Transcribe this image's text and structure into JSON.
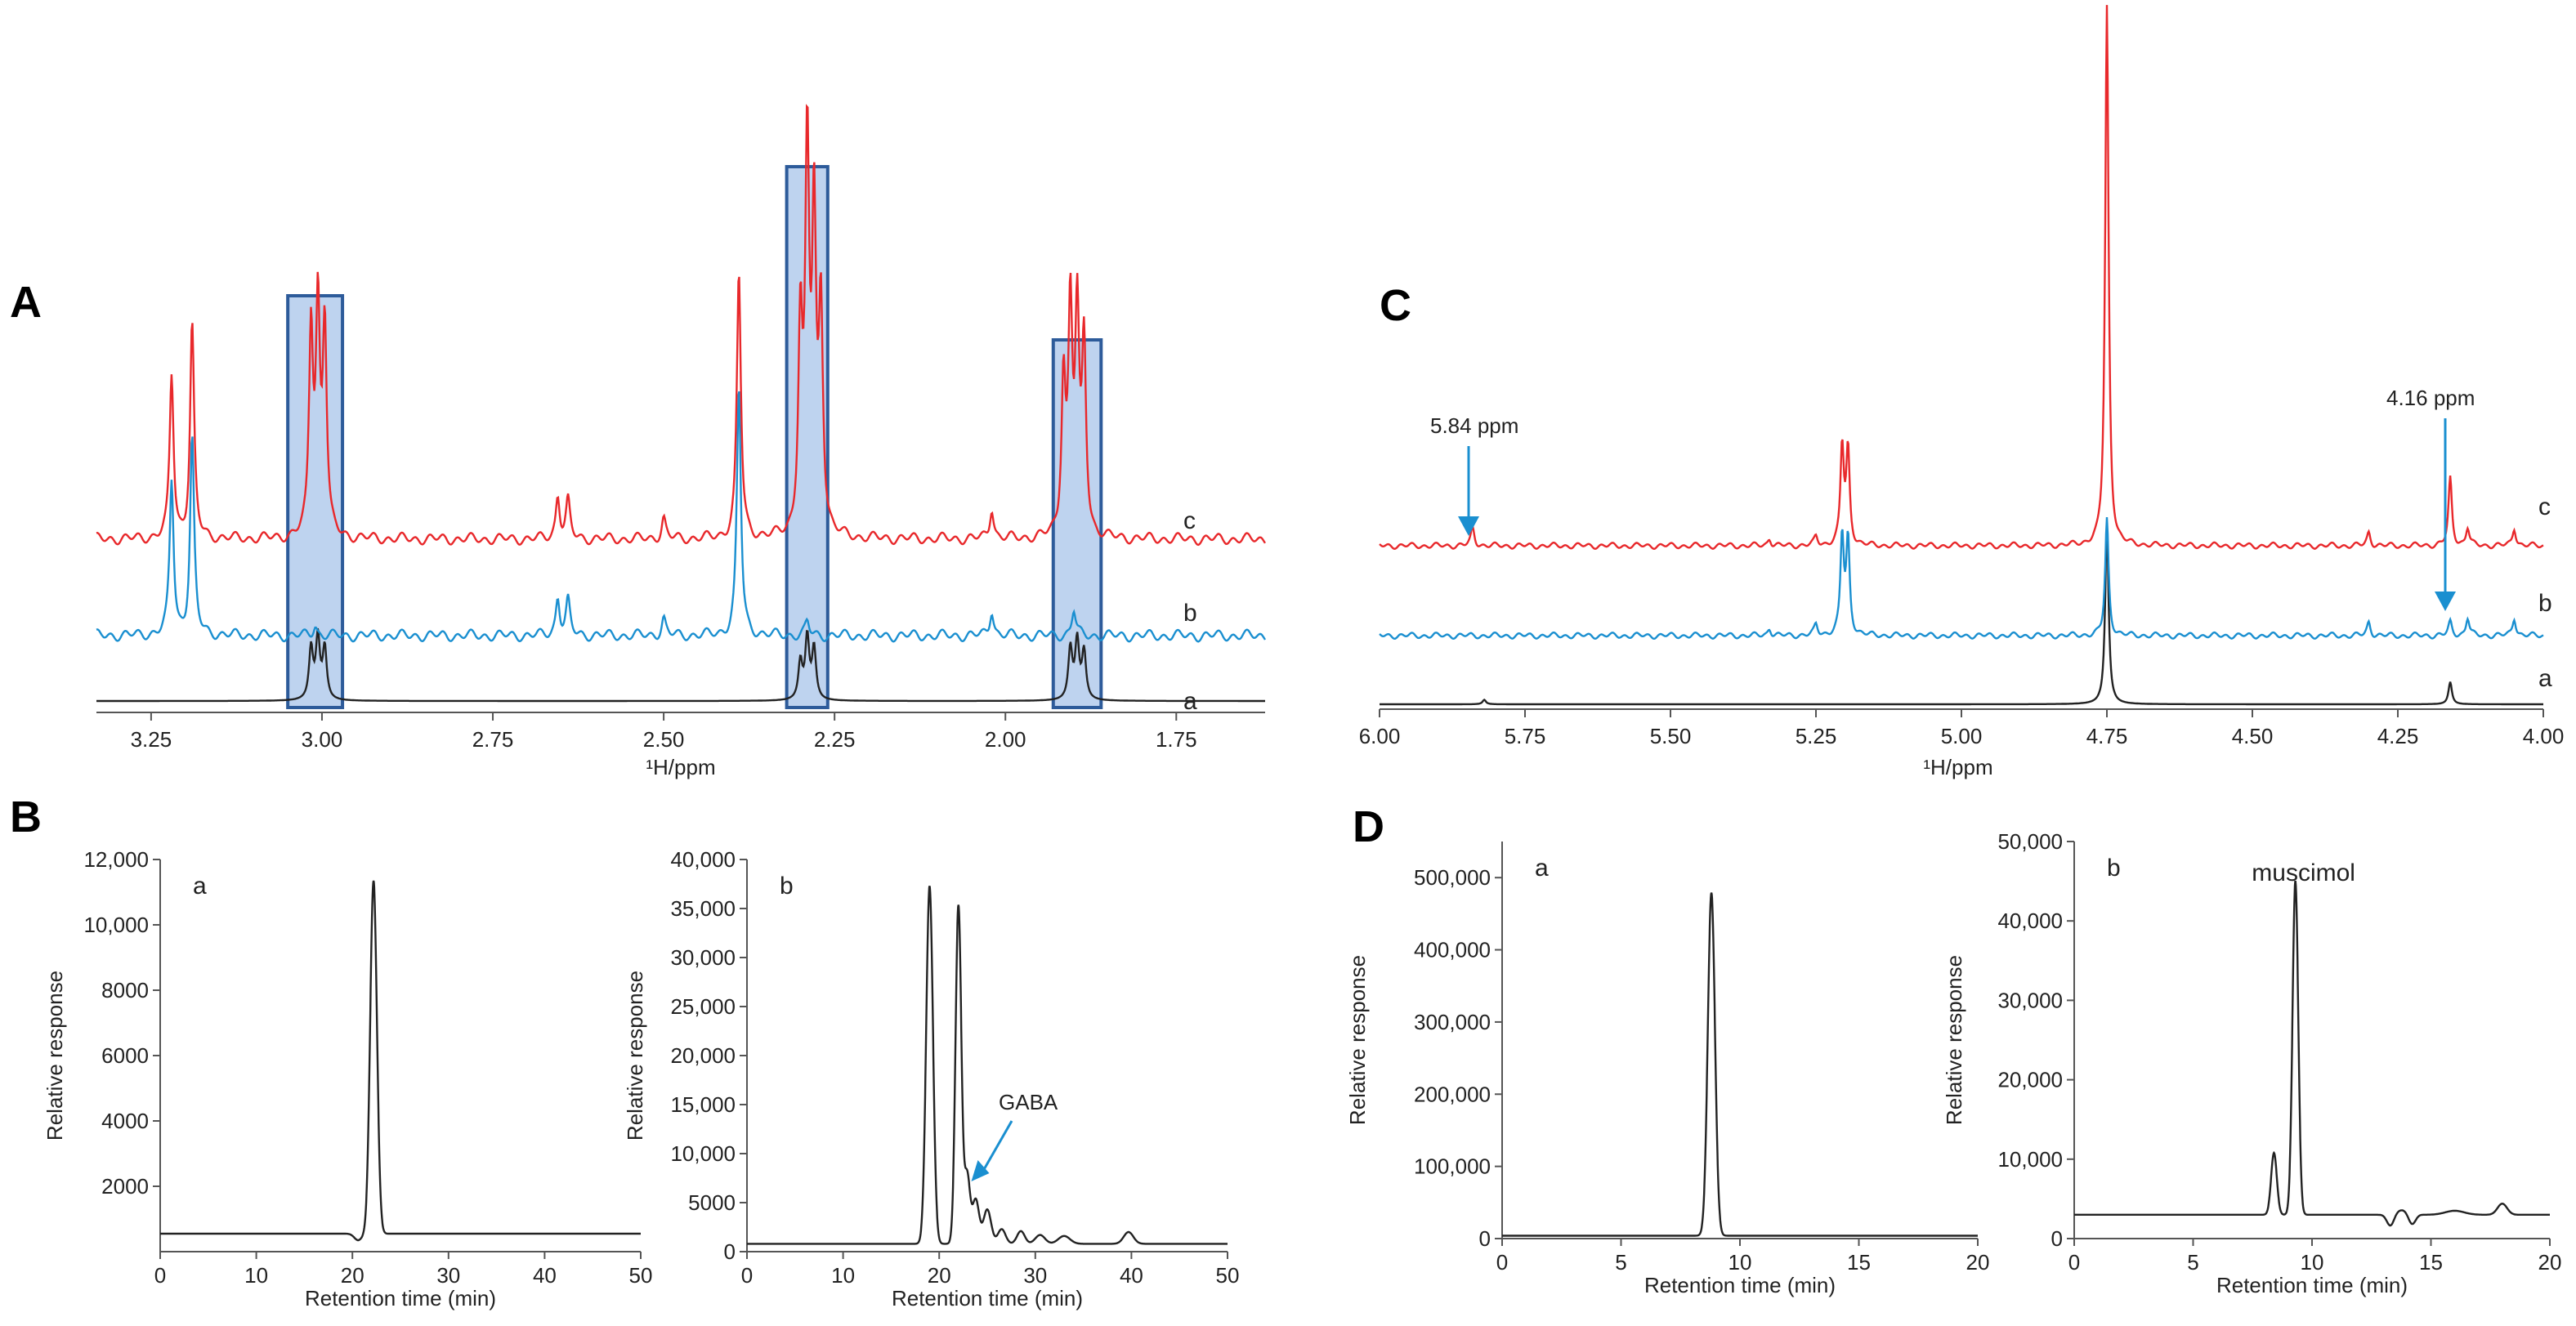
{
  "chart_data": [
    {
      "id": "A",
      "type": "line",
      "panel_label": "A",
      "xlabel": "¹H/ppm",
      "x_range": [
        3.33,
        1.62
      ],
      "x_reversed": true,
      "x_ticks": [
        3.25,
        3.0,
        2.75,
        2.5,
        2.25,
        2.0,
        1.75
      ],
      "x_tick_labels": [
        "3.25",
        "3.00",
        "2.75",
        "2.50",
        "2.25",
        "2.00",
        "1.75"
      ],
      "traces": [
        {
          "name": "c",
          "color": "#e8282b",
          "baseline_offset": 2,
          "peaks": [
            [
              3.22,
              0.95
            ],
            [
              3.19,
              1.25
            ],
            [
              3.016,
              1.2
            ],
            [
              3.006,
              1.3
            ],
            [
              2.996,
              1.22
            ],
            [
              2.655,
              0.25
            ],
            [
              2.64,
              0.22
            ],
            [
              2.39,
              1.55
            ],
            [
              2.29,
              2.2
            ],
            [
              2.28,
              1.8
            ],
            [
              2.27,
              1.3
            ],
            [
              2.3,
              1.2
            ],
            [
              1.905,
              1.3
            ],
            [
              1.895,
              1.25
            ],
            [
              1.885,
              1.1
            ],
            [
              1.915,
              0.9
            ],
            [
              2.02,
              0.18
            ],
            [
              2.5,
              0.12
            ]
          ]
        },
        {
          "name": "b",
          "color": "#1a8fd0",
          "baseline_offset": 1,
          "peaks": [
            [
              3.22,
              0.9
            ],
            [
              3.19,
              1.15
            ],
            [
              3.01,
              0.06
            ],
            [
              2.655,
              0.22
            ],
            [
              2.64,
              0.2
            ],
            [
              2.39,
              1.45
            ],
            [
              2.29,
              0.08
            ],
            [
              1.9,
              0.15
            ],
            [
              2.02,
              0.15
            ],
            [
              2.5,
              0.1
            ]
          ]
        },
        {
          "name": "a",
          "color": "#222222",
          "baseline_offset": 0,
          "peaks": [
            [
              3.016,
              0.3
            ],
            [
              3.006,
              0.36
            ],
            [
              2.996,
              0.3
            ],
            [
              2.3,
              0.22
            ],
            [
              2.29,
              0.36
            ],
            [
              2.28,
              0.3
            ],
            [
              1.905,
              0.3
            ],
            [
              1.895,
              0.34
            ],
            [
              1.885,
              0.28
            ]
          ]
        }
      ],
      "highlights": [
        [
          3.05,
          2.97
        ],
        [
          2.32,
          2.26
        ],
        [
          1.93,
          1.86
        ]
      ]
    },
    {
      "id": "C",
      "type": "line",
      "panel_label": "C",
      "xlabel": "¹H/ppm",
      "x_range": [
        6.0,
        4.0
      ],
      "x_reversed": true,
      "x_ticks": [
        6.0,
        5.75,
        5.5,
        5.25,
        5.0,
        4.75,
        4.5,
        4.25,
        4.0
      ],
      "x_tick_labels": [
        "6.00",
        "5.75",
        "5.50",
        "5.25",
        "5.00",
        "4.75",
        "4.50",
        "4.25",
        "4.00"
      ],
      "traces": [
        {
          "name": "c",
          "color": "#e8282b",
          "baseline_offset": 2,
          "peaks": [
            [
              5.84,
              0.2
            ],
            [
              5.205,
              1.1
            ],
            [
              5.195,
              1.05
            ],
            [
              5.25,
              0.1
            ],
            [
              5.33,
              0.08
            ],
            [
              4.75,
              6.0
            ],
            [
              4.16,
              0.75
            ],
            [
              4.13,
              0.2
            ],
            [
              4.3,
              0.15
            ],
            [
              4.05,
              0.2
            ]
          ]
        },
        {
          "name": "b",
          "color": "#1a8fd0",
          "baseline_offset": 1,
          "peaks": [
            [
              5.205,
              1.1
            ],
            [
              5.195,
              1.05
            ],
            [
              5.25,
              0.12
            ],
            [
              5.33,
              0.08
            ],
            [
              4.75,
              1.3
            ],
            [
              4.16,
              0.15
            ],
            [
              4.13,
              0.2
            ],
            [
              4.3,
              0.15
            ],
            [
              4.05,
              0.2
            ]
          ]
        },
        {
          "name": "a",
          "color": "#222222",
          "baseline_offset": 0,
          "peaks": [
            [
              5.82,
              0.05
            ],
            [
              4.75,
              2.0
            ],
            [
              4.16,
              0.25
            ]
          ]
        }
      ],
      "annotations": [
        {
          "text": "5.84 ppm",
          "x": 5.84,
          "target": "c"
        },
        {
          "text": "4.16 ppm",
          "x": 4.16,
          "target": "b"
        }
      ]
    },
    {
      "id": "B-a",
      "type": "line",
      "panel_label": "B",
      "subplot_label": "a",
      "xlabel": "Retention time (min)",
      "ylabel": "Relative response",
      "xlim": [
        0,
        50
      ],
      "ylim": [
        0,
        12000
      ],
      "x_ticks": [
        0,
        10,
        20,
        30,
        40,
        50
      ],
      "x_tick_labels": [
        "0",
        "10",
        "20",
        "30",
        "40",
        "50"
      ],
      "y_ticks": [
        2000,
        4000,
        6000,
        8000,
        10000,
        12000
      ],
      "y_tick_labels": [
        "2000",
        "4000",
        "6000",
        "8000",
        "10,000",
        "12,000"
      ],
      "baseline": 550,
      "peaks": [
        [
          22.2,
          10800,
          0.35
        ]
      ],
      "dips": [
        [
          20.6,
          -200,
          0.4
        ]
      ]
    },
    {
      "id": "B-b",
      "type": "line",
      "subplot_label": "b",
      "xlabel": "Retention time (min)",
      "ylabel": "Relative response",
      "xlim": [
        0,
        50
      ],
      "ylim": [
        0,
        40000
      ],
      "x_ticks": [
        0,
        10,
        20,
        30,
        40,
        50
      ],
      "x_tick_labels": [
        "0",
        "10",
        "20",
        "30",
        "40",
        "50"
      ],
      "y_ticks": [
        0,
        5000,
        10000,
        15000,
        20000,
        25000,
        30000,
        35000,
        40000
      ],
      "y_tick_labels": [
        "0",
        "5000",
        "10,000",
        "15,000",
        "20,000",
        "25,000",
        "30,000",
        "35,000",
        "40,000"
      ],
      "baseline": 800,
      "peaks": [
        [
          19.0,
          36500,
          0.35
        ],
        [
          22.0,
          34500,
          0.3
        ],
        [
          22.9,
          7000,
          0.3
        ],
        [
          23.8,
          4500,
          0.35
        ],
        [
          25.0,
          3500,
          0.4
        ],
        [
          26.5,
          1500,
          0.4
        ],
        [
          28.5,
          1300,
          0.4
        ],
        [
          30.5,
          900,
          0.5
        ],
        [
          33.0,
          800,
          0.6
        ],
        [
          39.7,
          1200,
          0.5
        ]
      ],
      "annotation": {
        "text": "GABA",
        "x": 23.0,
        "y": 7500
      }
    },
    {
      "id": "D-a",
      "type": "line",
      "panel_label": "D",
      "subplot_label": "a",
      "xlabel": "Retention time (min)",
      "ylabel": "Relative response",
      "xlim": [
        0,
        20
      ],
      "ylim": [
        0,
        550000
      ],
      "x_ticks": [
        0,
        5,
        10,
        15,
        20
      ],
      "x_tick_labels": [
        "0",
        "5",
        "10",
        "15",
        "20"
      ],
      "y_ticks": [
        0,
        100000,
        200000,
        300000,
        400000,
        500000
      ],
      "y_tick_labels": [
        "0",
        "100,000",
        "200,000",
        "300,000",
        "400,000",
        "500,000"
      ],
      "baseline": 4000,
      "peaks": [
        [
          8.8,
          475000,
          0.15
        ]
      ]
    },
    {
      "id": "D-b",
      "type": "line",
      "subplot_label": "b",
      "xlabel": "Retention time (min)",
      "ylabel": "Relative response",
      "xlim": [
        0,
        20
      ],
      "ylim": [
        0,
        50000
      ],
      "x_ticks": [
        0,
        5,
        10,
        15,
        20
      ],
      "x_tick_labels": [
        "0",
        "5",
        "10",
        "15",
        "20"
      ],
      "y_ticks": [
        0,
        10000,
        20000,
        30000,
        40000,
        50000
      ],
      "y_tick_labels": [
        "0",
        "10,000",
        "20,000",
        "30,000",
        "40,000",
        "50,000"
      ],
      "baseline": 3000,
      "peaks": [
        [
          8.4,
          7800,
          0.12
        ],
        [
          9.3,
          42000,
          0.12
        ],
        [
          13.8,
          600,
          0.3
        ],
        [
          16.0,
          500,
          0.4
        ],
        [
          18.0,
          1400,
          0.2
        ]
      ],
      "dips": [
        [
          13.3,
          -1500,
          0.15
        ],
        [
          14.2,
          -1400,
          0.15
        ]
      ],
      "annotation": {
        "text": "muscimol",
        "x": 9.3,
        "y": 42000
      }
    }
  ]
}
